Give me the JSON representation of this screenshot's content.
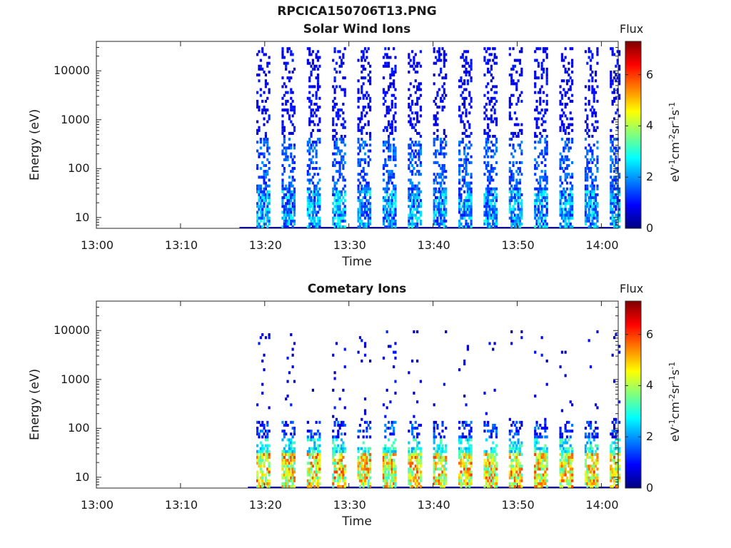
{
  "figure_title": "RPCICA150706T13.PNG",
  "chart_data": [
    {
      "type": "heatmap",
      "title": "Solar Wind Ions",
      "xlabel": "Time",
      "ylabel": "Energy (eV)",
      "yscale": "log",
      "ylim": [
        6,
        40000
      ],
      "xlim": [
        "13:00",
        "14:02"
      ],
      "x_ticks": [
        "13:00",
        "13:10",
        "13:20",
        "13:30",
        "13:40",
        "13:50",
        "14:00"
      ],
      "y_ticks": [
        "10",
        "100",
        "1000",
        "10000"
      ],
      "colorbar": {
        "title": "Flux",
        "unit_text": [
          "eV",
          "-1",
          "cm",
          "-2",
          "sr",
          "-1",
          "s",
          "-1"
        ],
        "ticks": [
          "0",
          "2",
          "4",
          "6"
        ],
        "range": [
          0,
          7.3
        ],
        "colormap": [
          "#00007f",
          "#0000ff",
          "#007fff",
          "#00ffff",
          "#7fff7f",
          "#ffff00",
          "#ff7f00",
          "#ff0000",
          "#7f0000"
        ]
      },
      "data_start": "13:17",
      "sweep_start_times": [
        "13:19",
        "13:22",
        "13:25",
        "13:28",
        "13:31",
        "13:34",
        "13:37",
        "13:40",
        "13:43",
        "13:46",
        "13:49",
        "13:52",
        "13:55",
        "13:58",
        "14:01"
      ],
      "typical_flux_by_energy": [
        {
          "energy_range": [
            6,
            35
          ],
          "flux": [
            1,
            3
          ]
        },
        {
          "energy_range": [
            35,
            400
          ],
          "flux": [
            1,
            2
          ]
        },
        {
          "energy_range": [
            400,
            30000
          ],
          "flux": [
            0.5,
            1.2
          ]
        }
      ],
      "grid": false
    },
    {
      "type": "heatmap",
      "title": "Cometary Ions",
      "xlabel": "Time",
      "ylabel": "Energy (eV)",
      "yscale": "log",
      "ylim": [
        6,
        40000
      ],
      "xlim": [
        "13:00",
        "14:02"
      ],
      "x_ticks": [
        "13:00",
        "13:10",
        "13:20",
        "13:30",
        "13:40",
        "13:50",
        "14:00"
      ],
      "y_ticks": [
        "10",
        "100",
        "1000",
        "10000"
      ],
      "colorbar": {
        "title": "Flux",
        "unit_text": [
          "eV",
          "-1",
          "cm",
          "-2",
          "sr",
          "-1",
          "s",
          "-1"
        ],
        "ticks": [
          "0",
          "2",
          "4",
          "6"
        ],
        "range": [
          0,
          7.3
        ],
        "colormap": [
          "#00007f",
          "#0000ff",
          "#007fff",
          "#00ffff",
          "#7fff7f",
          "#ffff00",
          "#ff7f00",
          "#ff0000",
          "#7f0000"
        ]
      },
      "data_start": "13:18",
      "sweep_start_times": [
        "13:19",
        "13:22",
        "13:25",
        "13:28",
        "13:31",
        "13:34",
        "13:37",
        "13:40",
        "13:43",
        "13:46",
        "13:49",
        "13:52",
        "13:55",
        "13:58",
        "14:01"
      ],
      "typical_flux_by_energy": [
        {
          "energy_range": [
            6,
            30
          ],
          "flux": [
            3,
            6
          ]
        },
        {
          "energy_range": [
            30,
            60
          ],
          "flux": [
            2,
            3.5
          ]
        },
        {
          "energy_range": [
            60,
            150
          ],
          "flux": [
            0.5,
            2
          ]
        },
        {
          "energy_range": [
            150,
            10000
          ],
          "flux": [
            0.3,
            1.2
          ]
        }
      ],
      "grid": false
    }
  ]
}
